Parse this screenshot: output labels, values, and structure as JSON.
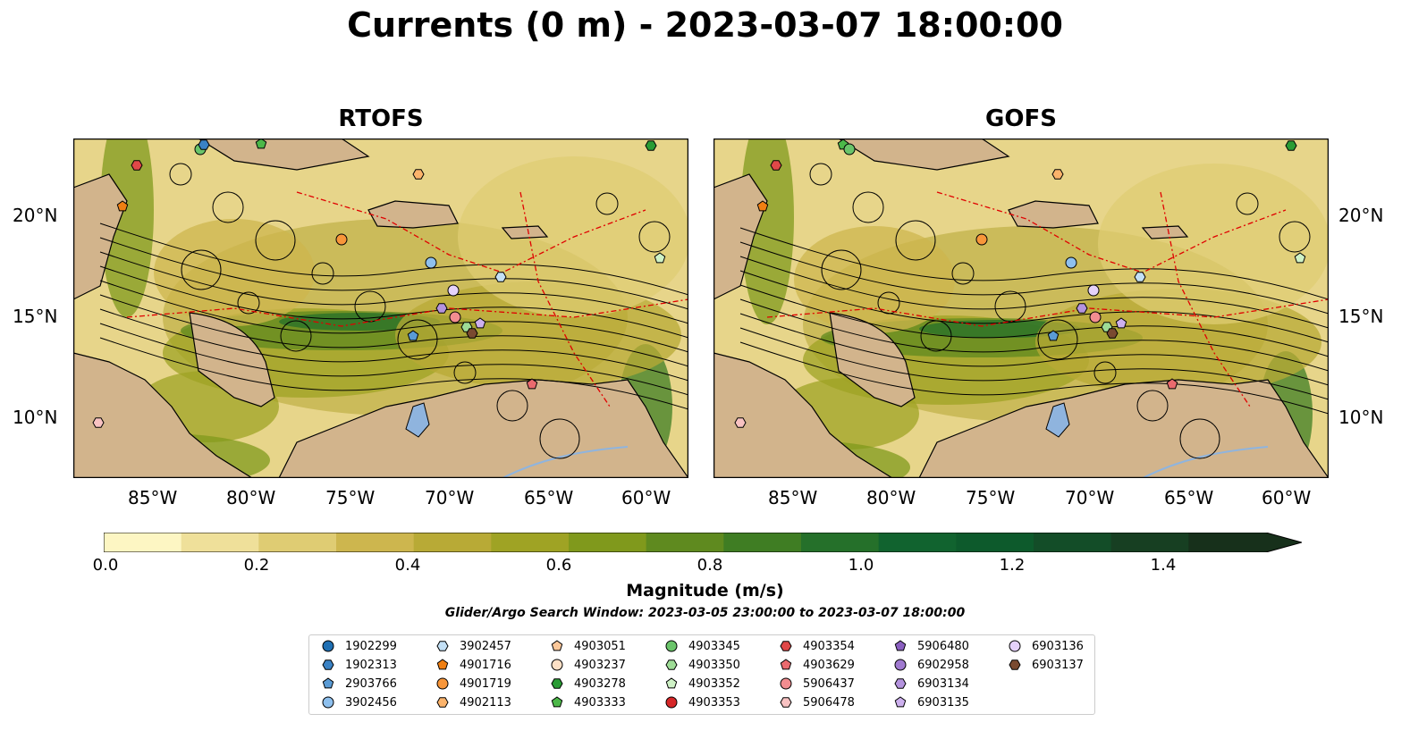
{
  "title": "Currents (0 m) - 2023-03-07 18:00:00",
  "panels": [
    {
      "title": "RTOFS"
    },
    {
      "title": "GOFS"
    }
  ],
  "axes": {
    "lon_labels": [
      "85°W",
      "80°W",
      "75°W",
      "70°W",
      "65°W",
      "60°W"
    ],
    "lat_labels": [
      "20°N",
      "15°N",
      "10°N"
    ]
  },
  "colorbar": {
    "title": "Magnitude (m/s)",
    "ticks": [
      "0.0",
      "0.2",
      "0.4",
      "0.6",
      "0.8",
      "1.0",
      "1.2",
      "1.4"
    ],
    "extend": "max",
    "colors": [
      "#fdf6c3",
      "#efe09a",
      "#dfcc73",
      "#cdb64e",
      "#b8aa36",
      "#9fa324",
      "#80991c",
      "#5f8a1f",
      "#3f7d23",
      "#25702a",
      "#11632f",
      "#0d5a2c",
      "#134d28",
      "#173f22",
      "#17301b"
    ]
  },
  "window_text": "Glider/Argo Search Window: 2023-03-05 23:00:00 to 2023-03-07 18:00:00",
  "legend": [
    {
      "label": "1902299",
      "marker": "circle",
      "color": "#1f6fb3"
    },
    {
      "label": "1902313",
      "marker": "hexagon",
      "color": "#3a82c4"
    },
    {
      "label": "2903766",
      "marker": "pentagon",
      "color": "#5a9bd5"
    },
    {
      "label": "3902456",
      "marker": "circle",
      "color": "#8ec0ee"
    },
    {
      "label": "3902457",
      "marker": "hexagon",
      "color": "#c3e0f5"
    },
    {
      "label": "4901716",
      "marker": "pentagon",
      "color": "#f07f12"
    },
    {
      "label": "4901719",
      "marker": "circle",
      "color": "#f8963a"
    },
    {
      "label": "4902113",
      "marker": "hexagon",
      "color": "#fbb36b"
    },
    {
      "label": "4903051",
      "marker": "pentagon",
      "color": "#fcc89a"
    },
    {
      "label": "4903237",
      "marker": "circle",
      "color": "#fde0c6"
    },
    {
      "label": "4903278",
      "marker": "hexagon",
      "color": "#2a9c35"
    },
    {
      "label": "4903333",
      "marker": "pentagon",
      "color": "#4cb849"
    },
    {
      "label": "4903345",
      "marker": "circle",
      "color": "#6ac46a"
    },
    {
      "label": "4903350",
      "marker": "hexagon",
      "color": "#9edc96"
    },
    {
      "label": "4903352",
      "marker": "pentagon",
      "color": "#cff2c6"
    },
    {
      "label": "4903353",
      "marker": "circle",
      "color": "#d62728"
    },
    {
      "label": "4903354",
      "marker": "hexagon",
      "color": "#e04848"
    },
    {
      "label": "4903629",
      "marker": "pentagon",
      "color": "#ea6a6e"
    },
    {
      "label": "5906437",
      "marker": "circle",
      "color": "#f28d90"
    },
    {
      "label": "5906478",
      "marker": "hexagon",
      "color": "#f8c2c2"
    },
    {
      "label": "5906480",
      "marker": "pentagon",
      "color": "#8a5fc0"
    },
    {
      "label": "6902958",
      "marker": "circle",
      "color": "#a07ad0"
    },
    {
      "label": "6903134",
      "marker": "hexagon",
      "color": "#b493de"
    },
    {
      "label": "6903135",
      "marker": "pentagon",
      "color": "#cdb0ee"
    },
    {
      "label": "6903136",
      "marker": "circle",
      "color": "#e5d2fa"
    },
    {
      "label": "6903137",
      "marker": "hexagon",
      "color": "#7a4a30"
    }
  ]
}
